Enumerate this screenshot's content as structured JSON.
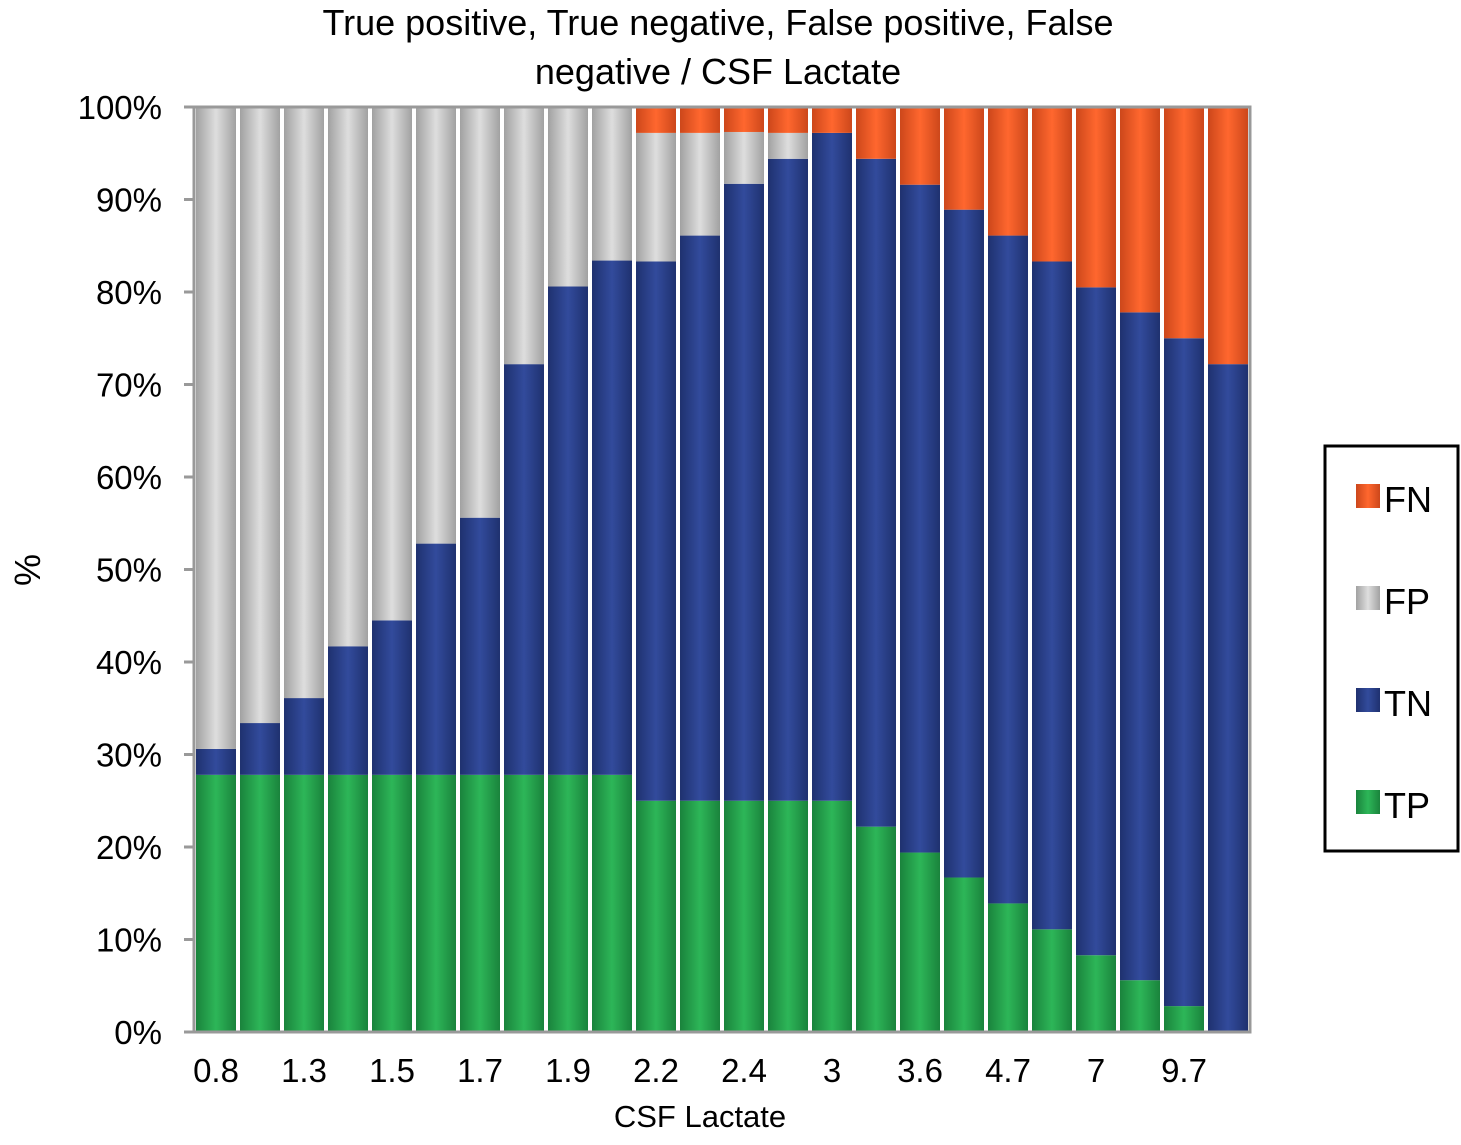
{
  "chart_data": {
    "type": "bar",
    "stacked": true,
    "title": "True positive, True negative, False positive, False negative / CSF Lactate",
    "title_lines": [
      "True positive, True negative, False positive, False",
      "negative / CSF Lactate"
    ],
    "xlabel": "CSF Lactate",
    "ylabel": "%",
    "ylim": [
      0,
      100
    ],
    "yticks": [
      "0%",
      "10%",
      "20%",
      "30%",
      "40%",
      "50%",
      "60%",
      "70%",
      "80%",
      "90%",
      "100%"
    ],
    "categories": [
      "0.8",
      "",
      "1.3",
      "",
      "1.5",
      "",
      "1.7",
      "",
      "1.9",
      "",
      "2.2",
      "",
      "2.4",
      "",
      "3",
      "",
      "3.6",
      "",
      "4.7",
      "",
      "7",
      "",
      "9.7",
      ""
    ],
    "series": [
      {
        "name": "TP",
        "color": "#1f9a46",
        "values": [
          27.8,
          27.8,
          27.8,
          27.8,
          27.8,
          27.8,
          27.8,
          27.8,
          27.8,
          27.8,
          25,
          25,
          25,
          25,
          25,
          22.2,
          19.4,
          16.7,
          13.9,
          11.1,
          8.3,
          5.6,
          2.8,
          0
        ]
      },
      {
        "name": "TN",
        "color": "#243a82",
        "values": [
          2.8,
          5.6,
          8.3,
          13.9,
          16.7,
          25,
          27.8,
          44.4,
          52.8,
          55.6,
          58.3,
          61.1,
          66.7,
          69.4,
          72.2,
          72.2,
          72.2,
          72.2,
          72.2,
          72.2,
          72.2,
          72.2,
          72.2,
          72.2
        ]
      },
      {
        "name": "FP",
        "color": "#bdbdbd",
        "values": [
          69.4,
          66.7,
          63.9,
          58.3,
          55.6,
          47.2,
          44.4,
          27.8,
          19.4,
          16.7,
          13.9,
          11.1,
          5.6,
          2.8,
          0,
          0,
          0,
          0,
          0,
          0,
          0,
          0,
          0,
          0
        ]
      },
      {
        "name": "FN",
        "color": "#f05320",
        "values": [
          0,
          0,
          0,
          0,
          0,
          0,
          0,
          0,
          0,
          0,
          2.8,
          2.8,
          2.8,
          2.8,
          2.8,
          5.6,
          8.3,
          11.1,
          13.9,
          16.7,
          19.4,
          22.2,
          25,
          27.8
        ]
      }
    ],
    "legend": {
      "position": "right",
      "order": [
        "FN",
        "FP",
        "TN",
        "TP"
      ]
    },
    "grid": false
  }
}
